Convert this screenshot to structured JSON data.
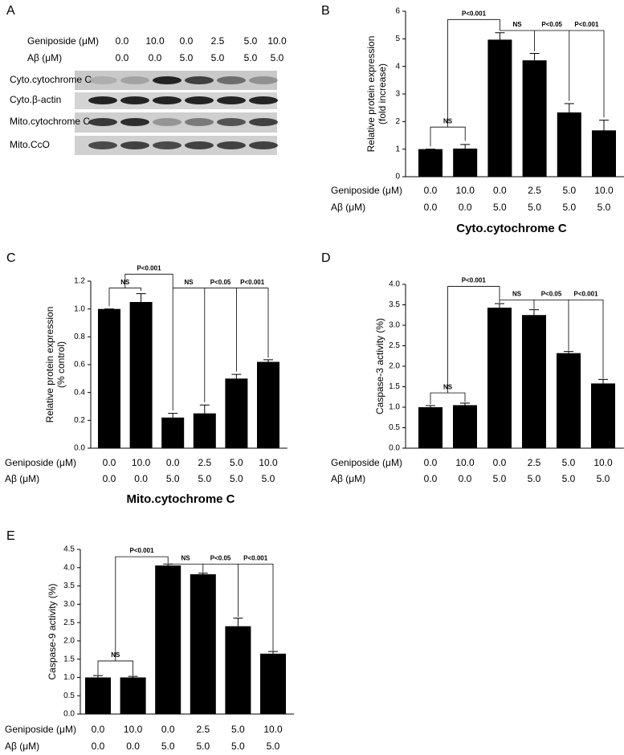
{
  "blot": {
    "panel": "A",
    "rows": [
      {
        "label": "Geniposide (μM)",
        "values": [
          "0.0",
          "10.0",
          "0.0",
          "2.5",
          "5.0",
          "10.0"
        ]
      },
      {
        "label": "Aβ (μM)",
        "values": [
          "0.0",
          "0.0",
          "5.0",
          "5.0",
          "5.0",
          "5.0"
        ]
      }
    ],
    "bands": [
      "Cyto.cytochrome C",
      "Cyto.β-actin",
      "Mito.cytochrome C",
      "Mito.CcO"
    ]
  },
  "chart_data": [
    {
      "type": "bar",
      "panel": "B",
      "title": "Cyto.cytochrome C",
      "ylabel": [
        "Relative protein expression",
        "(fold increase)"
      ],
      "category_rows": [
        {
          "label": "Geniposide (μM)",
          "values": [
            "0.0",
            "10.0",
            "0.0",
            "2.5",
            "5.0",
            "10.0"
          ]
        },
        {
          "label": "Aβ (μM)",
          "values": [
            "0.0",
            "0.0",
            "5.0",
            "5.0",
            "5.0",
            "5.0"
          ]
        }
      ],
      "values": [
        1.0,
        1.02,
        4.97,
        4.22,
        2.33,
        1.68
      ],
      "errors": [
        0,
        0.15,
        0.25,
        0.25,
        0.32,
        0.37
      ],
      "color": "#000000",
      "ylim": [
        0,
        6
      ],
      "yticks": [
        0,
        1,
        2,
        3,
        4,
        5,
        6
      ],
      "annotations": [
        "NS",
        "P<0.001",
        "NS",
        "P<0.05",
        "P<0.001"
      ]
    },
    {
      "type": "bar",
      "panel": "C",
      "title": "Mito.cytochrome C",
      "ylabel": [
        "Relative protein expression",
        "(% control)"
      ],
      "category_rows": [
        {
          "label": "Geniposide (μM)",
          "values": [
            "0.0",
            "10.0",
            "0.0",
            "2.5",
            "5.0",
            "10.0"
          ]
        },
        {
          "label": "Aβ (μM)",
          "values": [
            "0.0",
            "0.0",
            "5.0",
            "5.0",
            "5.0",
            "5.0"
          ]
        }
      ],
      "values": [
        1.0,
        1.05,
        0.22,
        0.25,
        0.5,
        0.62
      ],
      "errors": [
        0,
        0.06,
        0.03,
        0.06,
        0.03,
        0.015
      ],
      "color": "#000000",
      "ylim": [
        0,
        1.2
      ],
      "yticks": [
        {
          "value": 0,
          "label": "0.0"
        },
        0.2,
        0.4,
        0.6,
        0.8,
        {
          "value": 1,
          "label": "1.0"
        },
        1.2
      ],
      "annotations": [
        "NS",
        "P<0.001",
        "NS",
        "P<0.05",
        "P<0.001"
      ]
    },
    {
      "type": "bar",
      "panel": "D",
      "ylabel": [
        "Caspase-3 activity (%)"
      ],
      "category_rows": [
        {
          "label": "Geniposide (μM)",
          "values": [
            "0.0",
            "10.0",
            "0.0",
            "2.5",
            "5.0",
            "10.0"
          ]
        },
        {
          "label": "Aβ (μM)",
          "values": [
            "0.0",
            "0.0",
            "5.0",
            "5.0",
            "5.0",
            "5.0"
          ]
        }
      ],
      "values": [
        1.0,
        1.05,
        3.43,
        3.25,
        2.32,
        1.58
      ],
      "errors": [
        0.04,
        0.05,
        0.1,
        0.13,
        0.04,
        0.1
      ],
      "color": "#000000",
      "ylim": [
        0,
        4
      ],
      "yticks": [
        {
          "value": 0,
          "label": "0.0"
        },
        0.5,
        {
          "value": 1,
          "label": "1.0"
        },
        1.5,
        {
          "value": 2,
          "label": "2.0"
        },
        2.5,
        {
          "value": 3,
          "label": "3.0"
        },
        3.5,
        {
          "value": 4,
          "label": "4.0"
        }
      ],
      "annotations": [
        "NS",
        "P<0.001",
        "NS",
        "P<0.05",
        "P<0.001"
      ]
    },
    {
      "type": "bar",
      "panel": "E",
      "ylabel": [
        "Caspase-9 activity (%)"
      ],
      "category_rows": [
        {
          "label": "Geniposide (μM)",
          "values": [
            "0.0",
            "10.0",
            "0.0",
            "2.5",
            "5.0",
            "10.0"
          ]
        },
        {
          "label": "Aβ (μM)",
          "values": [
            "0.0",
            "0.0",
            "5.0",
            "5.0",
            "5.0",
            "5.0"
          ]
        }
      ],
      "values": [
        1.0,
        1.0,
        4.06,
        3.82,
        2.4,
        1.65
      ],
      "errors": [
        0.05,
        0.03,
        0.04,
        0.03,
        0.22,
        0.06
      ],
      "color": "#000000",
      "ylim": [
        0,
        4.5
      ],
      "yticks": [
        {
          "value": 0,
          "label": "0.0"
        },
        0.5,
        {
          "value": 1,
          "label": "1.0"
        },
        1.5,
        {
          "value": 2,
          "label": "2.0"
        },
        2.5,
        {
          "value": 3,
          "label": "3.0"
        },
        3.5,
        {
          "value": 4,
          "label": "4.0"
        },
        4.5
      ],
      "annotations": [
        "NS",
        "P<0.001",
        "NS",
        "P<0.05",
        "P<0.001"
      ]
    }
  ]
}
